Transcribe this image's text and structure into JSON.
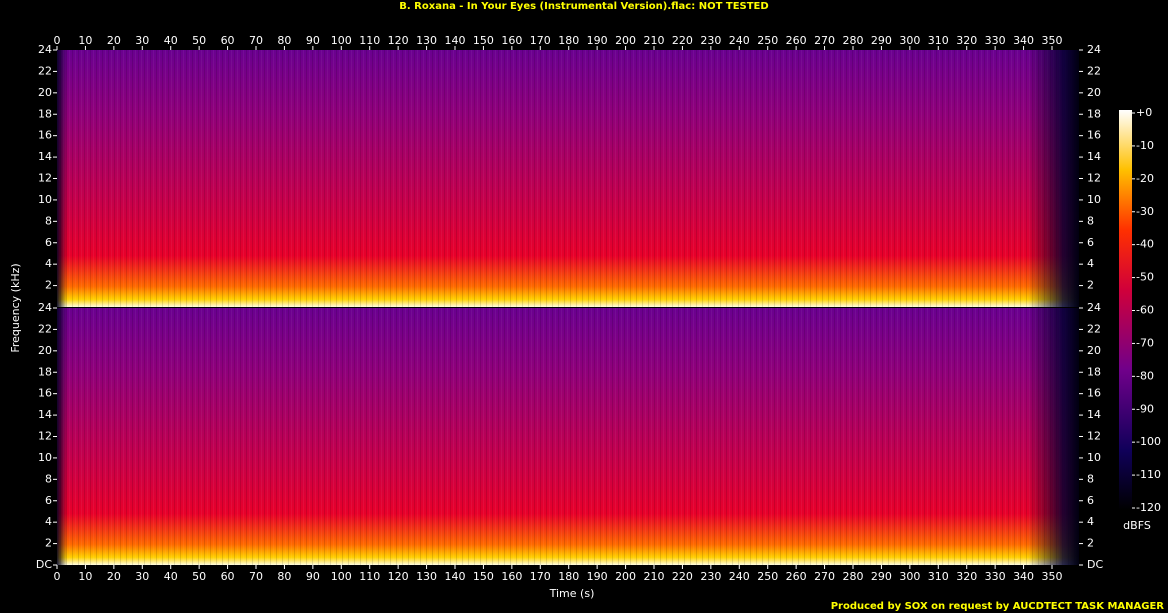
{
  "chart_data": {
    "type": "spectrogram",
    "title": "B. Roxana - In Your Eyes (Instrumental Version).flac: NOT TESTED",
    "xlabel": "Time (s)",
    "ylabel": "Frequency (kHz)",
    "xlim": [
      0,
      359.5
    ],
    "xticks": [
      0,
      10,
      20,
      30,
      40,
      50,
      60,
      70,
      80,
      90,
      100,
      110,
      120,
      130,
      140,
      150,
      160,
      170,
      180,
      190,
      200,
      210,
      220,
      230,
      240,
      250,
      260,
      270,
      280,
      290,
      300,
      310,
      320,
      330,
      340,
      350
    ],
    "channels": [
      {
        "ylim": [
          0,
          24
        ],
        "yticks": [
          2,
          4,
          6,
          8,
          10,
          12,
          14,
          16,
          18,
          20,
          22,
          24
        ]
      },
      {
        "ylim": [
          0,
          24
        ],
        "yticks": [
          {
            "value": 0,
            "label": "DC"
          },
          2,
          4,
          6,
          8,
          10,
          12,
          14,
          16,
          18,
          20,
          22,
          24
        ]
      }
    ],
    "colorbar": {
      "label": "dBFS",
      "lim": [
        -120,
        0
      ],
      "ticks": [
        {
          "value": 0,
          "label": "+0"
        },
        -10,
        -20,
        -30,
        -40,
        -50,
        -60,
        -70,
        -80,
        -90,
        -100,
        -110,
        -120
      ]
    },
    "credit": "Produced by SOX on request by AUCDTECT TASK MANAGER"
  }
}
